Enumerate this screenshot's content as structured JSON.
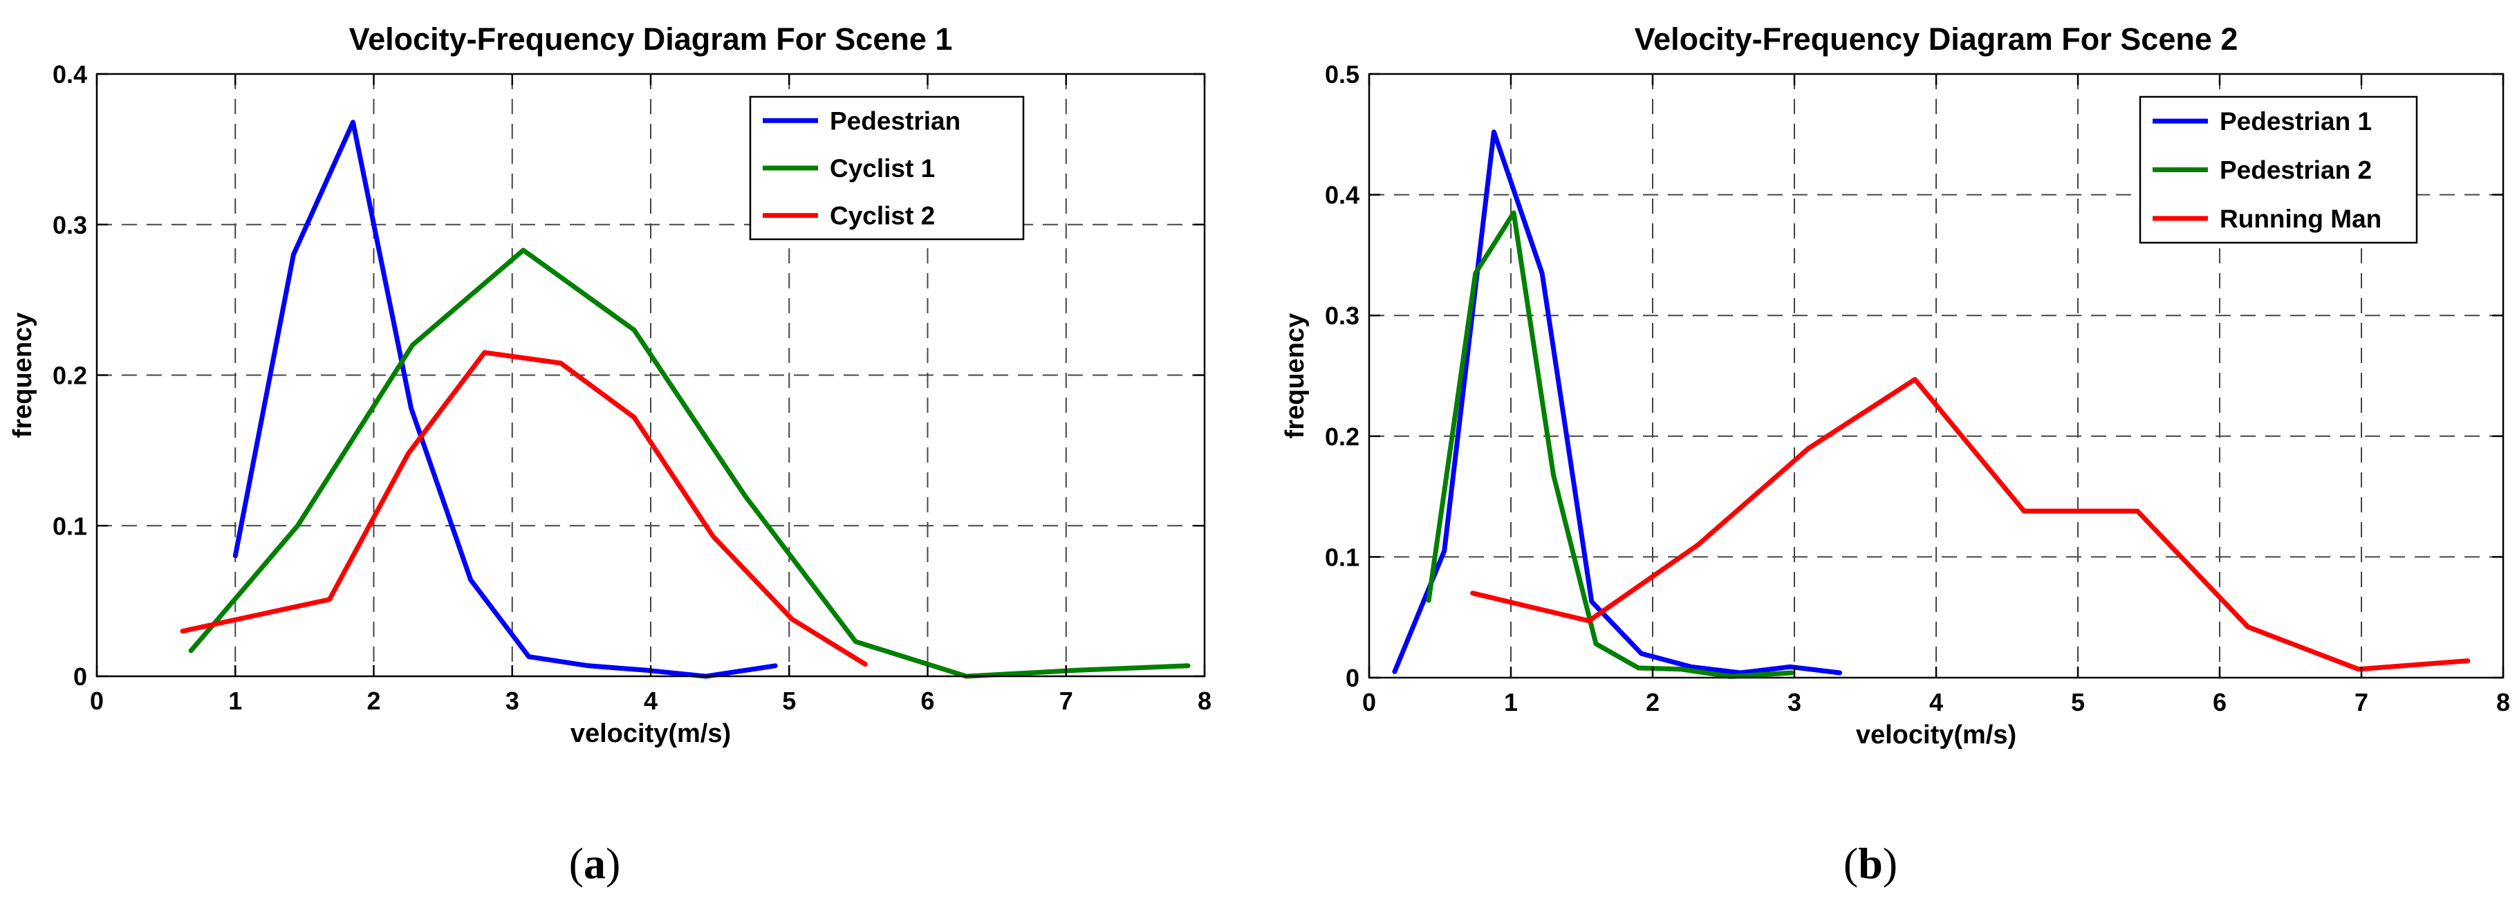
{
  "chart_data": [
    {
      "type": "line",
      "title": "Velocity-Frequency Diagram For Scene 1",
      "xlabel": "velocity(m/s)",
      "ylabel": "frequency",
      "xlim": [
        0,
        8
      ],
      "ylim": [
        0,
        0.4
      ],
      "xticks": [
        "0",
        "1",
        "2",
        "3",
        "4",
        "5",
        "6",
        "7",
        "8"
      ],
      "yticks": [
        "0",
        "0.1",
        "0.2",
        "0.3",
        "0.4"
      ],
      "grid": true,
      "legend_position": "top-right",
      "caption": "a",
      "series": [
        {
          "name": "Pedestrian",
          "color": "#0000ff",
          "x": [
            1.0,
            1.42,
            1.85,
            2.27,
            2.7,
            3.12,
            3.55,
            3.97,
            4.4,
            4.9
          ],
          "y": [
            0.08,
            0.28,
            0.368,
            0.178,
            0.064,
            0.013,
            0.007,
            0.004,
            0.0,
            0.007
          ]
        },
        {
          "name": "Cyclist 1",
          "color": "#008000",
          "x": [
            0.68,
            1.45,
            2.28,
            3.08,
            3.88,
            4.68,
            5.48,
            6.28,
            7.08,
            7.88
          ],
          "y": [
            0.017,
            0.1,
            0.22,
            0.283,
            0.23,
            0.12,
            0.023,
            0.0,
            0.004,
            0.007
          ]
        },
        {
          "name": "Cyclist 2",
          "color": "#ff0000",
          "x": [
            0.62,
            1.68,
            2.25,
            2.8,
            3.35,
            3.88,
            4.45,
            5.02,
            5.55
          ],
          "y": [
            0.03,
            0.051,
            0.148,
            0.215,
            0.208,
            0.172,
            0.093,
            0.038,
            0.008
          ]
        }
      ]
    },
    {
      "type": "line",
      "title": "Velocity-Frequency Diagram For Scene 2",
      "xlabel": "velocity(m/s)",
      "ylabel": "frequency",
      "xlim": [
        0,
        8
      ],
      "ylim": [
        0,
        0.5
      ],
      "xticks": [
        "0",
        "1",
        "2",
        "3",
        "4",
        "5",
        "6",
        "7",
        "8"
      ],
      "yticks": [
        "0",
        "0.1",
        "0.2",
        "0.3",
        "0.4",
        "0.5"
      ],
      "grid": true,
      "legend_position": "top-right",
      "caption": "b",
      "series": [
        {
          "name": "Pedestrian 1",
          "color": "#0000ff",
          "x": [
            0.18,
            0.53,
            0.88,
            1.22,
            1.57,
            1.92,
            2.27,
            2.62,
            2.97,
            3.32
          ],
          "y": [
            0.005,
            0.105,
            0.452,
            0.335,
            0.063,
            0.02,
            0.009,
            0.004,
            0.009,
            0.004
          ]
        },
        {
          "name": "Pedestrian 2",
          "color": "#008000",
          "x": [
            0.42,
            0.75,
            1.02,
            1.3,
            1.6,
            1.9,
            2.2,
            2.55,
            2.98
          ],
          "y": [
            0.064,
            0.335,
            0.385,
            0.168,
            0.028,
            0.008,
            0.007,
            0.001,
            0.004
          ]
        },
        {
          "name": "Running Man",
          "color": "#ff0000",
          "x": [
            0.73,
            1.55,
            2.32,
            3.1,
            3.85,
            4.62,
            5.42,
            6.2,
            6.98,
            7.75
          ],
          "y": [
            0.07,
            0.047,
            0.11,
            0.19,
            0.247,
            0.138,
            0.138,
            0.042,
            0.007,
            0.014
          ]
        }
      ]
    }
  ]
}
